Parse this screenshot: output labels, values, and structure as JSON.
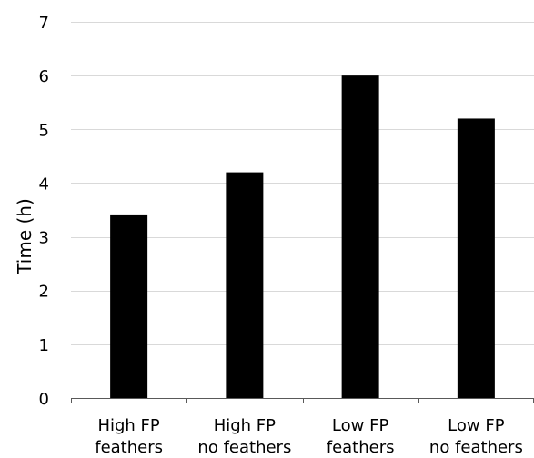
{
  "chart_data": {
    "type": "bar",
    "title": "",
    "xlabel": "",
    "ylabel": "Time (h)",
    "ylim": [
      0,
      7
    ],
    "yticks": [
      0,
      1,
      2,
      3,
      4,
      5,
      6,
      7
    ],
    "grid": true,
    "legend": "none",
    "categories": [
      [
        "High FP",
        "feathers"
      ],
      [
        "High FP",
        "no feathers"
      ],
      [
        "Low FP",
        "feathers"
      ],
      [
        "Low FP",
        "no feathers"
      ]
    ],
    "values": [
      3.4,
      4.2,
      6.0,
      5.2
    ],
    "bar_color": "#000000",
    "grid_color": "#d9d9d9",
    "axis_color": "#595959"
  }
}
